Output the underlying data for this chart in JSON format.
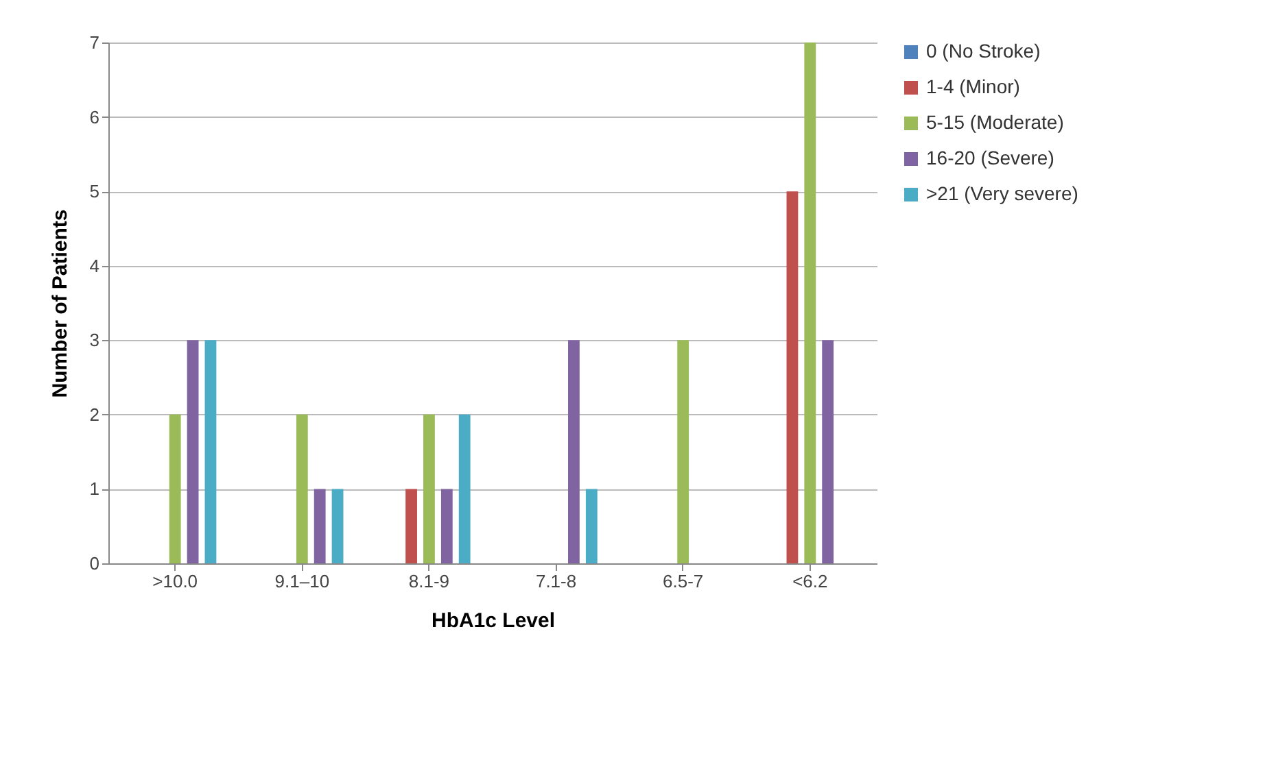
{
  "chart_data": {
    "type": "bar",
    "xlabel": "HbA1c  Level",
    "ylabel": "Number of Patients",
    "categories": [
      ">10.0",
      "9.1–10",
      "8.1-9",
      "7.1-8",
      "6.5-7",
      "<6.2"
    ],
    "series": [
      {
        "name": "0 (No Stroke)",
        "color": "#4f81bd",
        "values": [
          0,
          0,
          0,
          0,
          0,
          0
        ]
      },
      {
        "name": "1-4 (Minor)",
        "color": "#c0504d",
        "values": [
          0,
          0,
          1,
          0,
          0,
          5
        ]
      },
      {
        "name": "5-15 (Moderate)",
        "color": "#9bbb59",
        "values": [
          2,
          2,
          2,
          0,
          3,
          7
        ]
      },
      {
        "name": "16-20 (Severe)",
        "color": "#8064a2",
        "values": [
          3,
          1,
          1,
          3,
          0,
          3
        ]
      },
      {
        "name": ">21 (Very severe)",
        "color": "#4bacc6",
        "values": [
          3,
          1,
          2,
          1,
          0,
          0
        ]
      }
    ],
    "ylim": [
      0,
      7
    ],
    "yticks": [
      0,
      1,
      2,
      3,
      4,
      5,
      6,
      7
    ],
    "grid": "y",
    "legend": "right"
  }
}
